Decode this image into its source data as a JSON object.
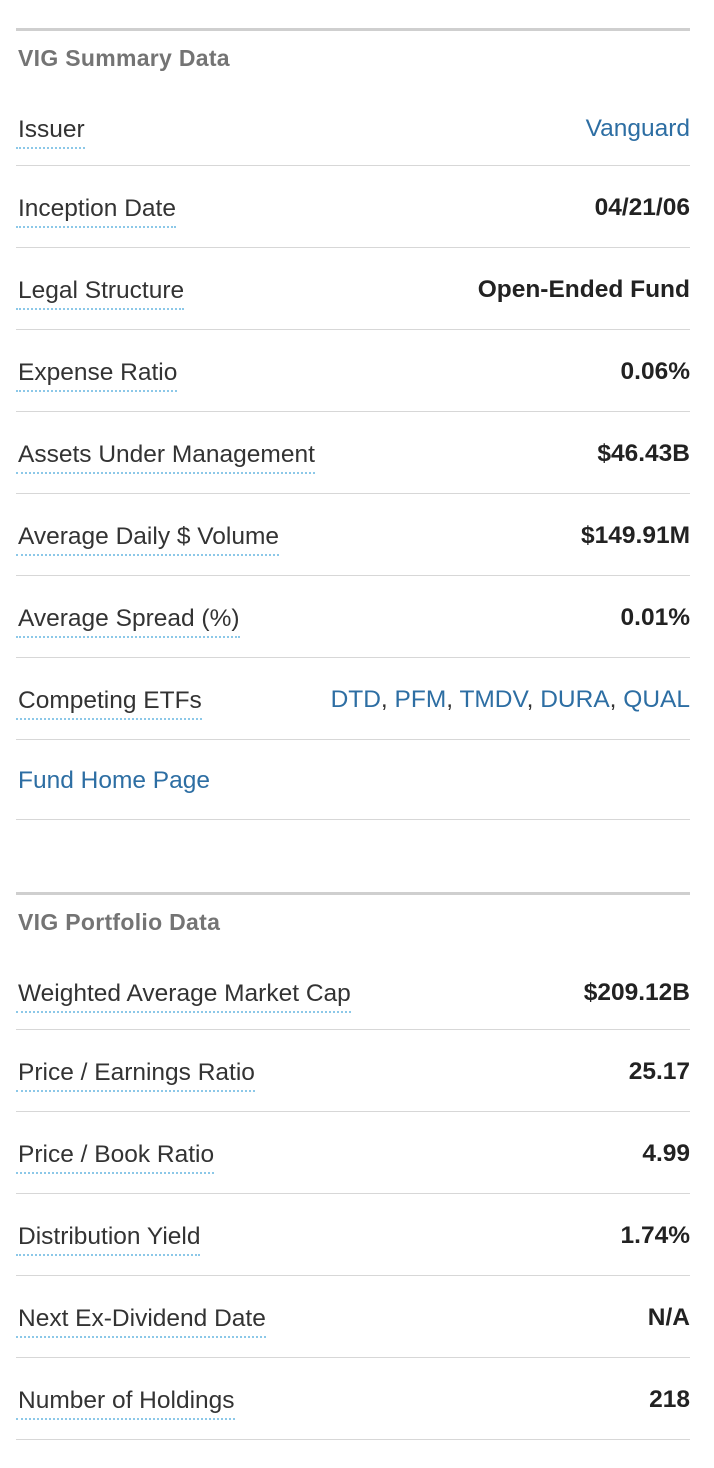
{
  "summary": {
    "title": "VIG Summary Data",
    "rows": [
      {
        "label": "Issuer",
        "value": "Vanguard"
      },
      {
        "label": "Inception Date",
        "value": "04/21/06"
      },
      {
        "label": "Legal Structure",
        "value": "Open-Ended Fund"
      },
      {
        "label": "Expense Ratio",
        "value": "0.06%"
      },
      {
        "label": "Assets Under Management",
        "value": "$46.43B"
      },
      {
        "label": "Average Daily $ Volume",
        "value": "$149.91M"
      },
      {
        "label": "Average Spread (%)",
        "value": "0.01%"
      },
      {
        "label": "Competing ETFs",
        "etfs": [
          "DTD",
          "PFM",
          "TMDV",
          "DURA",
          "QUAL"
        ],
        "separator": ", "
      }
    ],
    "home_link": "Fund Home Page"
  },
  "portfolio": {
    "title": "VIG Portfolio Data",
    "rows": [
      {
        "label": "Weighted Average Market Cap",
        "value": "$209.12B"
      },
      {
        "label": "Price / Earnings Ratio",
        "value": "25.17"
      },
      {
        "label": "Price / Book Ratio",
        "value": "4.99"
      },
      {
        "label": "Distribution Yield",
        "value": "1.74%"
      },
      {
        "label": "Next Ex-Dividend Date",
        "value": "N/A"
      },
      {
        "label": "Number of Holdings",
        "value": "218"
      }
    ]
  },
  "colors": {
    "link": "#2d6ea3",
    "label_underline": "#8cc8e8",
    "header_text": "#747474",
    "divider": "#d7d7d7"
  }
}
